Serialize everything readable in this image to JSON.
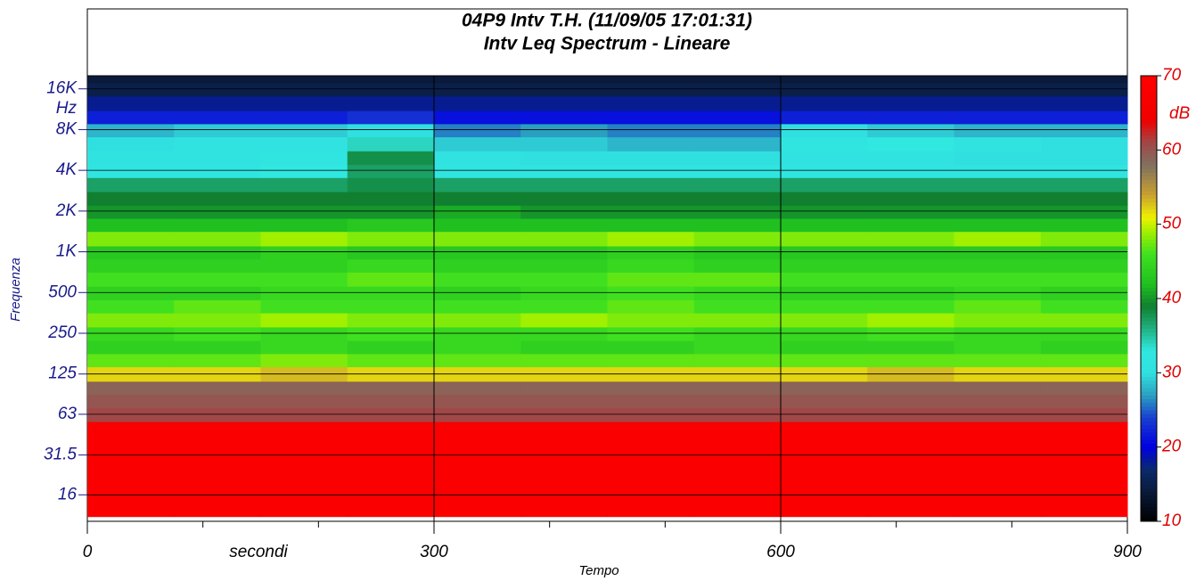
{
  "chart_data": {
    "type": "heatmap",
    "title": "04P9 Intv T.H. (11/09/05 17:01:31)",
    "subtitle": "Intv Leq Spectrum - Lineare",
    "xlabel": "Tempo",
    "xunit": "secondi",
    "ylabel": "Frequenza",
    "yunit": "Hz",
    "zunit": "dB",
    "xlim": [
      0,
      900
    ],
    "xticks": [
      0,
      300,
      600,
      900
    ],
    "xminorticks": [
      100,
      200,
      400,
      500,
      700,
      800
    ],
    "ylim": [
      11,
      20000
    ],
    "ylog": true,
    "yticks": [
      {
        "value": 16000,
        "label": "16K"
      },
      {
        "value": 8000,
        "label": "8K"
      },
      {
        "value": 4000,
        "label": "4K"
      },
      {
        "value": 2000,
        "label": "2K"
      },
      {
        "value": 1000,
        "label": "1K"
      },
      500,
      250,
      125,
      63,
      31.5,
      16
    ],
    "grid": true,
    "zlim": [
      10,
      70
    ],
    "zticks": [
      10,
      20,
      30,
      40,
      50,
      60,
      70
    ],
    "colorscale": [
      [
        10,
        "#000000"
      ],
      [
        14,
        "#0a1a3a"
      ],
      [
        17,
        "#0a2a6a"
      ],
      [
        20,
        "#0000e0"
      ],
      [
        24,
        "#1a40d0"
      ],
      [
        27,
        "#2aa0c0"
      ],
      [
        30,
        "#30e0e0"
      ],
      [
        33,
        "#30e8e0"
      ],
      [
        36,
        "#20b080"
      ],
      [
        39,
        "#108030"
      ],
      [
        42,
        "#20c020"
      ],
      [
        46,
        "#40e020"
      ],
      [
        49,
        "#a0f000"
      ],
      [
        51,
        "#f0f000"
      ],
      [
        54,
        "#c8a030"
      ],
      [
        58,
        "#807060"
      ],
      [
        61,
        "#a04848"
      ],
      [
        64,
        "#f00000"
      ],
      [
        70,
        "#ff0000"
      ]
    ],
    "x": [
      37.5,
      112.5,
      187.5,
      262.5,
      337.5,
      412.5,
      487.5,
      562.5,
      637.5,
      712.5,
      787.5,
      862.5
    ],
    "y": [
      12.5,
      16,
      20,
      25,
      31.5,
      40,
      50,
      63,
      80,
      100,
      125,
      160,
      200,
      250,
      315,
      400,
      500,
      630,
      800,
      1000,
      1250,
      1600,
      2000,
      2500,
      3150,
      4000,
      5000,
      6300,
      8000,
      10000,
      12500,
      16000,
      20000
    ],
    "z": [
      [
        68,
        68,
        68,
        68,
        68,
        68,
        68,
        68,
        68,
        68,
        68,
        68
      ],
      [
        68,
        68,
        68,
        68,
        68,
        68,
        68,
        68,
        68,
        68,
        68,
        68
      ],
      [
        68,
        68,
        68,
        68,
        68,
        68,
        68,
        68,
        68,
        68,
        68,
        68
      ],
      [
        68,
        68,
        68,
        68,
        68,
        68,
        68,
        68,
        68,
        68,
        68,
        68
      ],
      [
        68,
        68,
        68,
        68,
        68,
        68,
        68,
        68,
        68,
        68,
        68,
        68
      ],
      [
        68,
        68,
        68,
        68,
        68,
        68,
        68,
        68,
        68,
        68,
        68,
        68
      ],
      [
        68,
        68,
        68,
        68,
        68,
        68,
        68,
        68,
        68,
        68,
        68,
        68
      ],
      [
        61,
        61,
        61,
        61,
        61,
        61,
        61,
        61,
        61,
        61,
        61,
        61
      ],
      [
        60,
        60,
        60,
        60,
        60,
        60,
        60,
        60,
        60,
        60,
        60,
        60
      ],
      [
        59,
        59,
        59,
        59,
        59,
        59,
        59,
        59,
        59,
        59,
        59,
        59
      ],
      [
        52,
        52,
        53,
        52,
        52,
        52,
        52,
        52,
        52,
        53,
        52,
        52
      ],
      [
        47,
        47,
        48,
        47,
        47,
        47,
        47,
        47,
        47,
        47,
        47,
        47
      ],
      [
        44,
        44,
        45,
        44,
        45,
        44,
        44,
        45,
        44,
        44,
        45,
        44
      ],
      [
        45,
        46,
        45,
        46,
        45,
        45,
        46,
        45,
        45,
        46,
        45,
        45
      ],
      [
        48,
        48,
        49,
        48,
        48,
        49,
        48,
        48,
        48,
        49,
        48,
        48
      ],
      [
        46,
        47,
        46,
        46,
        46,
        46,
        47,
        46,
        46,
        46,
        47,
        46
      ],
      [
        44,
        44,
        45,
        45,
        44,
        45,
        46,
        45,
        44,
        44,
        45,
        44
      ],
      [
        46,
        46,
        46,
        47,
        46,
        46,
        47,
        47,
        46,
        46,
        46,
        46
      ],
      [
        44,
        44,
        44,
        45,
        44,
        44,
        45,
        44,
        44,
        44,
        44,
        44
      ],
      [
        43,
        43,
        44,
        43,
        43,
        43,
        44,
        43,
        43,
        43,
        43,
        43
      ],
      [
        48,
        48,
        49,
        48,
        48,
        48,
        49,
        48,
        48,
        48,
        49,
        48
      ],
      [
        42,
        42,
        42,
        43,
        42,
        42,
        42,
        42,
        42,
        42,
        42,
        42
      ],
      [
        40,
        40,
        40,
        40,
        41,
        40,
        40,
        40,
        40,
        40,
        40,
        40
      ],
      [
        39,
        39,
        39,
        39,
        39,
        39,
        39,
        39,
        39,
        39,
        39,
        39
      ],
      [
        37,
        37,
        37,
        38,
        37,
        37,
        37,
        37,
        37,
        37,
        37,
        37
      ],
      [
        32,
        32,
        33,
        37,
        32,
        32,
        32,
        32,
        32,
        32,
        32,
        32
      ],
      [
        31,
        31,
        32,
        38,
        31,
        30,
        30,
        30,
        31,
        31,
        30,
        30
      ],
      [
        30,
        31,
        31,
        34,
        29,
        29,
        28,
        28,
        32,
        33,
        31,
        30
      ],
      [
        28,
        29,
        29,
        30,
        26,
        27,
        26,
        26,
        30,
        29,
        28,
        28
      ],
      [
        22,
        22,
        22,
        23,
        21,
        21,
        21,
        21,
        22,
        22,
        22,
        22
      ],
      [
        18,
        18,
        18,
        18,
        18,
        18,
        18,
        18,
        18,
        18,
        18,
        18
      ],
      [
        15,
        15,
        15,
        15,
        15,
        15,
        15,
        15,
        15,
        15,
        15,
        15
      ],
      [
        14,
        14,
        14,
        14,
        14,
        14,
        14,
        14,
        14,
        14,
        14,
        14
      ]
    ]
  }
}
